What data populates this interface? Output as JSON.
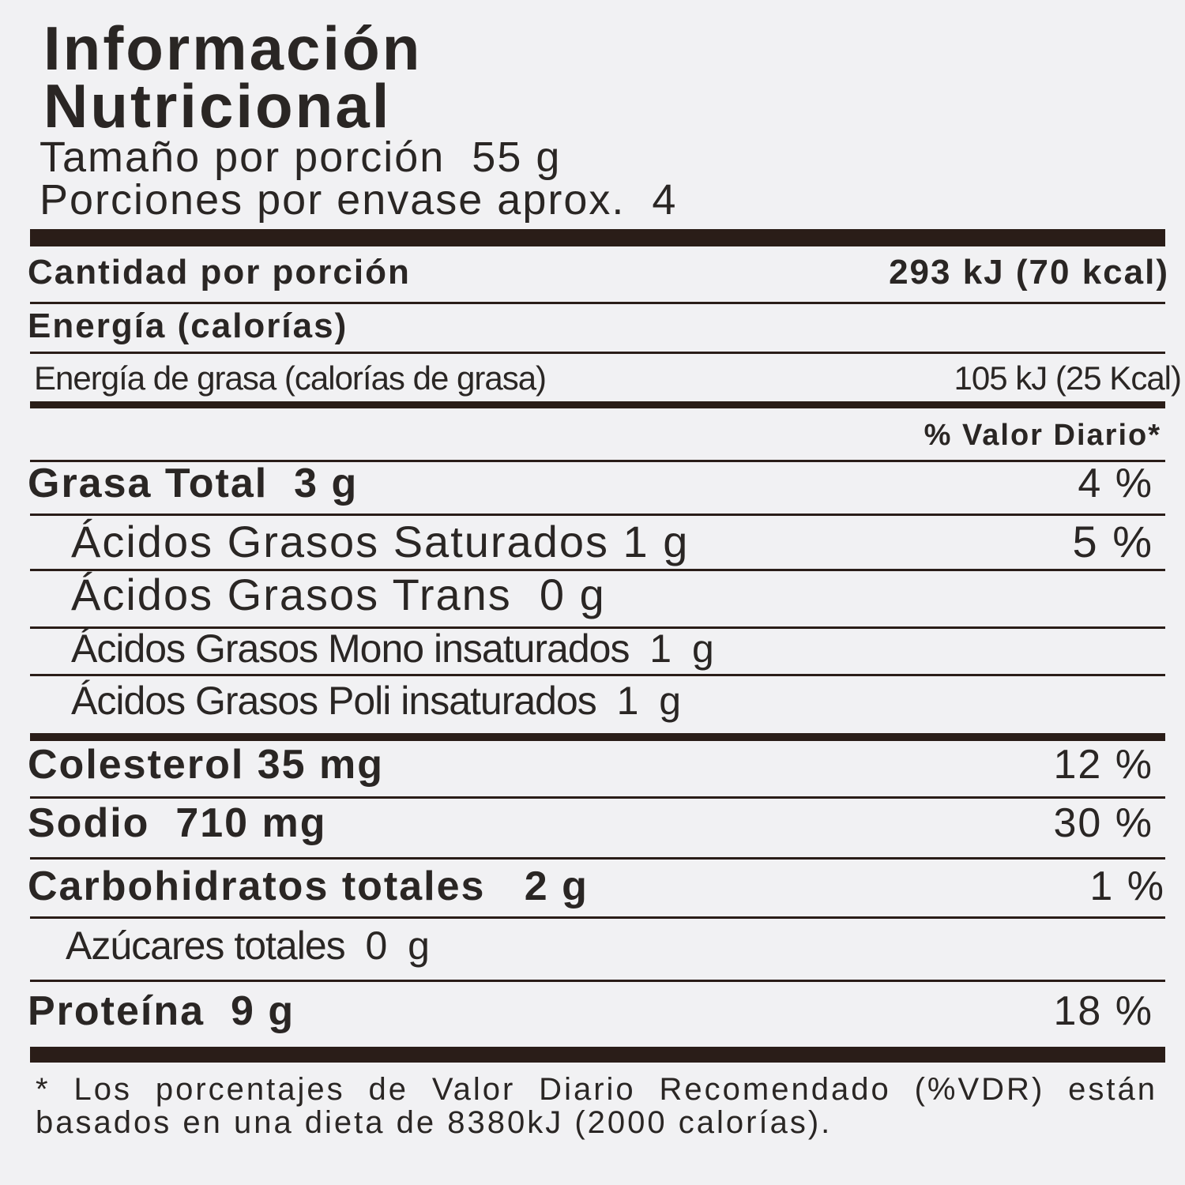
{
  "title_line1": "Información",
  "title_line2": "Nutricional",
  "serving_size": {
    "label": "Tamaño por porción",
    "value": "55 g"
  },
  "servings_per_container": {
    "label": "Porciones por envase aprox.",
    "value": "4"
  },
  "amount_per_serving": {
    "label": "Cantidad por porción",
    "value": "293 kJ (70 kcal)"
  },
  "energy_label": "Energía (calorías)",
  "energy_from_fat": {
    "label": "Energía de grasa (calorías de grasa)",
    "value": "105 kJ (25 Kcal)"
  },
  "daily_value_header": "% Valor Diario*",
  "nutrients": [
    {
      "label": "Grasa Total",
      "amount": "3 g",
      "pct": "4 %"
    },
    {
      "label": "Ácidos Grasos Saturados",
      "amount": "1 g",
      "pct": "5 %"
    },
    {
      "label": "Ácidos Grasos Trans",
      "amount": "0 g",
      "pct": ""
    },
    {
      "label": "Ácidos Grasos Mono insaturados",
      "amount": "1 g",
      "pct": ""
    },
    {
      "label": "Ácidos Grasos Poli insaturados",
      "amount": "1 g",
      "pct": ""
    },
    {
      "label": "Colesterol",
      "amount": "35 mg",
      "pct": "12 %"
    },
    {
      "label": "Sodio",
      "amount": "710 mg",
      "pct": "30 %"
    },
    {
      "label": "Carbohidratos totales",
      "amount": "2 g",
      "pct": "1 %"
    },
    {
      "label": "Azúcares totales",
      "amount": "0 g",
      "pct": ""
    },
    {
      "label": "Proteína",
      "amount": "9 g",
      "pct": "18 %"
    }
  ],
  "footnote": "* Los porcentajes de Valor Diario Recomendado (%VDR) están basados en una dieta de 8380kJ (2000 calorías)."
}
